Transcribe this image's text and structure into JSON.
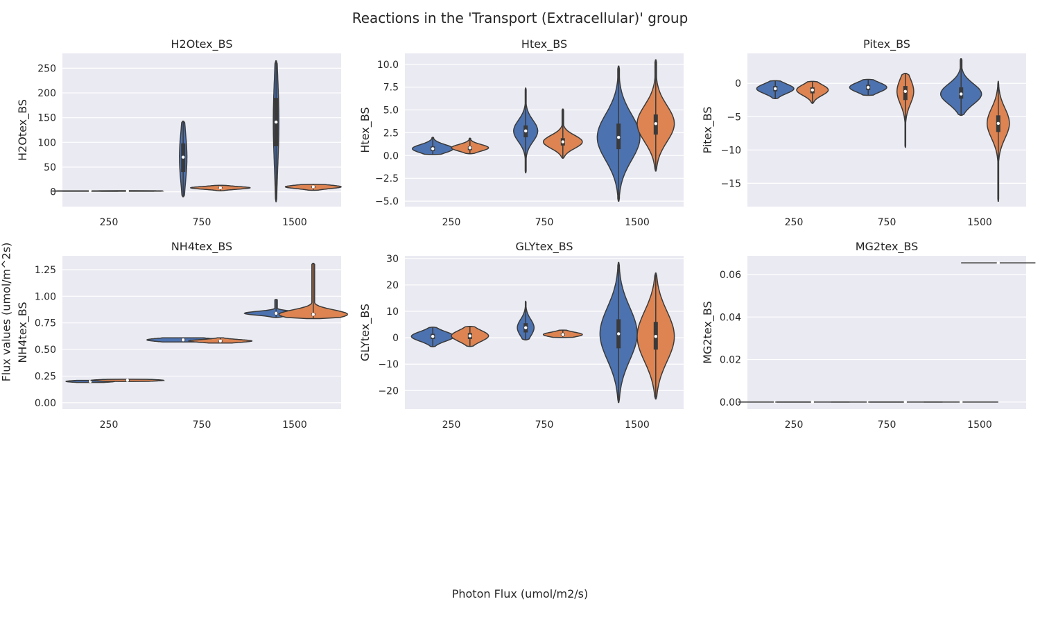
{
  "figure": {
    "title": "Reactions in the 'Transport (Extracellular)' group",
    "xlabel": "Photon Flux (umol/m2/s)",
    "ylabel": "Flux values (umol/m^2s)"
  },
  "colors": {
    "series_a": "#4c72b0",
    "series_b": "#dd8452",
    "background": "#eaeaf2",
    "grid": "#ffffff",
    "line": "#3a3a3a"
  },
  "chart_data": [
    {
      "type": "violin",
      "title": "H2Otex_BS",
      "ylabel": "H2Otex_BS",
      "categories": [
        "250",
        "750",
        "1500"
      ],
      "ylim": [
        -30,
        280
      ],
      "yticks": [
        0,
        50,
        100,
        150,
        200,
        250
      ],
      "ytick_labels": [
        "0",
        "50",
        "100",
        "150",
        "200",
        "250"
      ],
      "violins": [
        {
          "cat": 0,
          "series": 0,
          "min": 1,
          "max": 2,
          "q1": 1.2,
          "median": 1.5,
          "q3": 1.8,
          "halfwidth": 0.41
        },
        {
          "cat": 0,
          "series": 1,
          "min": 1,
          "max": 2.2,
          "q1": 1.2,
          "median": 1.6,
          "q3": 2.0,
          "halfwidth": 0.38
        },
        {
          "cat": 1,
          "series": 0,
          "min": -10,
          "max": 143,
          "q1": 40,
          "median": 70,
          "q3": 98,
          "halfwidth": 0.04
        },
        {
          "cat": 1,
          "series": 1,
          "min": 2,
          "max": 13,
          "q1": 7,
          "median": 8,
          "q3": 10,
          "halfwidth": 0.32
        },
        {
          "cat": 2,
          "series": 0,
          "min": -20,
          "max": 265,
          "q1": 92,
          "median": 141,
          "q3": 190,
          "halfwidth": 0.03
        },
        {
          "cat": 2,
          "series": 1,
          "min": 3,
          "max": 15,
          "q1": 8,
          "median": 10,
          "q3": 12,
          "halfwidth": 0.3
        }
      ]
    },
    {
      "type": "violin",
      "title": "Htex_BS",
      "ylabel": "Htex_BS",
      "categories": [
        "250",
        "750",
        "1500"
      ],
      "ylim": [
        -5.6,
        11.2
      ],
      "yticks": [
        -5,
        -2.5,
        0,
        2.5,
        5,
        7.5,
        10
      ],
      "ytick_labels": [
        "−5.0",
        "−2.5",
        "0.0",
        "2.5",
        "5.0",
        "7.5",
        "10.0"
      ],
      "violins": [
        {
          "cat": 0,
          "series": 0,
          "min": 0.1,
          "max": 2.0,
          "q1": 0.5,
          "median": 0.75,
          "q3": 1.0,
          "halfwidth": 0.22
        },
        {
          "cat": 0,
          "series": 1,
          "min": 0.2,
          "max": 1.9,
          "q1": 0.6,
          "median": 0.85,
          "q3": 1.0,
          "halfwidth": 0.2
        },
        {
          "cat": 1,
          "series": 0,
          "min": -1.9,
          "max": 7.4,
          "q1": 2.0,
          "median": 2.7,
          "q3": 3.3,
          "halfwidth": 0.13
        },
        {
          "cat": 1,
          "series": 1,
          "min": -0.3,
          "max": 5.1,
          "q1": 1.1,
          "median": 1.5,
          "q3": 1.9,
          "halfwidth": 0.21
        },
        {
          "cat": 2,
          "series": 0,
          "min": -5.0,
          "max": 9.8,
          "q1": 0.7,
          "median": 2.0,
          "q3": 3.5,
          "halfwidth": 0.23
        },
        {
          "cat": 2,
          "series": 1,
          "min": -1.7,
          "max": 10.5,
          "q1": 2.3,
          "median": 3.5,
          "q3": 4.5,
          "halfwidth": 0.2
        }
      ]
    },
    {
      "type": "violin",
      "title": "Pitex_BS",
      "ylabel": "Pitex_BS",
      "categories": [
        "250",
        "750",
        "1500"
      ],
      "ylim": [
        -18.5,
        4.5
      ],
      "yticks": [
        -15,
        -10,
        -5,
        0
      ],
      "ytick_labels": [
        "−15",
        "−10",
        "−5",
        "0"
      ],
      "violins": [
        {
          "cat": 0,
          "series": 0,
          "min": -2.3,
          "max": 0.4,
          "q1": -1.2,
          "median": -0.8,
          "q3": -0.4,
          "halfwidth": 0.2
        },
        {
          "cat": 0,
          "series": 1,
          "min": -3.0,
          "max": 0.3,
          "q1": -1.5,
          "median": -1.0,
          "q3": -0.6,
          "halfwidth": 0.17
        },
        {
          "cat": 1,
          "series": 0,
          "min": -1.8,
          "max": 0.6,
          "q1": -1.0,
          "median": -0.6,
          "q3": -0.2,
          "halfwidth": 0.2
        },
        {
          "cat": 1,
          "series": 1,
          "min": -9.6,
          "max": 1.5,
          "q1": -2.5,
          "median": -1.2,
          "q3": -0.4,
          "halfwidth": 0.09
        },
        {
          "cat": 2,
          "series": 0,
          "min": -4.8,
          "max": 3.7,
          "q1": -2.3,
          "median": -1.6,
          "q3": -0.6,
          "halfwidth": 0.22
        },
        {
          "cat": 2,
          "series": 1,
          "min": -17.7,
          "max": 0.3,
          "q1": -7.3,
          "median": -6.0,
          "q3": -4.8,
          "halfwidth": 0.12
        }
      ]
    },
    {
      "type": "violin",
      "title": "NH4tex_BS",
      "ylabel": "NH4tex_BS",
      "categories": [
        "250",
        "750",
        "1500"
      ],
      "ylim": [
        -0.06,
        1.38
      ],
      "yticks": [
        0,
        0.25,
        0.5,
        0.75,
        1.0,
        1.25
      ],
      "ytick_labels": [
        "0.00",
        "0.25",
        "0.50",
        "0.75",
        "1.00",
        "1.25"
      ],
      "violins": [
        {
          "cat": 0,
          "series": 0,
          "min": 0.19,
          "max": 0.21,
          "q1": 0.195,
          "median": 0.2,
          "q3": 0.205,
          "halfwidth": 0.26
        },
        {
          "cat": 0,
          "series": 1,
          "min": 0.2,
          "max": 0.22,
          "q1": 0.205,
          "median": 0.21,
          "q3": 0.215,
          "halfwidth": 0.39
        },
        {
          "cat": 1,
          "series": 0,
          "min": 0.57,
          "max": 0.61,
          "q1": 0.58,
          "median": 0.59,
          "q3": 0.6,
          "halfwidth": 0.39
        },
        {
          "cat": 1,
          "series": 1,
          "min": 0.56,
          "max": 0.61,
          "q1": 0.57,
          "median": 0.58,
          "q3": 0.585,
          "halfwidth": 0.34
        },
        {
          "cat": 2,
          "series": 0,
          "min": 0.8,
          "max": 0.97,
          "q1": 0.83,
          "median": 0.84,
          "q3": 0.85,
          "halfwidth": 0.34
        },
        {
          "cat": 2,
          "series": 1,
          "min": 0.79,
          "max": 1.31,
          "q1": 0.82,
          "median": 0.83,
          "q3": 0.84,
          "halfwidth": 0.37
        }
      ]
    },
    {
      "type": "violin",
      "title": "GLYtex_BS",
      "ylabel": "GLYtex_BS",
      "categories": [
        "250",
        "750",
        "1500"
      ],
      "ylim": [
        -27,
        31
      ],
      "yticks": [
        -20,
        -10,
        0,
        10,
        20,
        30
      ],
      "ytick_labels": [
        "−20",
        "−10",
        "0",
        "10",
        "20",
        "30"
      ],
      "violins": [
        {
          "cat": 0,
          "series": 0,
          "min": -3.4,
          "max": 4.0,
          "q1": -0.5,
          "median": 0.5,
          "q3": 1.5,
          "halfwidth": 0.23
        },
        {
          "cat": 0,
          "series": 1,
          "min": -3.3,
          "max": 4.3,
          "q1": -0.5,
          "median": 0.7,
          "q3": 1.8,
          "halfwidth": 0.2
        },
        {
          "cat": 1,
          "series": 0,
          "min": -0.8,
          "max": 13.8,
          "q1": 2.0,
          "median": 3.8,
          "q3": 5.5,
          "halfwidth": 0.09
        },
        {
          "cat": 1,
          "series": 1,
          "min": 0.1,
          "max": 2.9,
          "q1": 0.7,
          "median": 1.2,
          "q3": 1.7,
          "halfwidth": 0.21
        },
        {
          "cat": 2,
          "series": 0,
          "min": -24.5,
          "max": 28.5,
          "q1": -4.0,
          "median": 1.5,
          "q3": 7.0,
          "halfwidth": 0.2
        },
        {
          "cat": 2,
          "series": 1,
          "min": -23.2,
          "max": 24.5,
          "q1": -4.5,
          "median": 0.5,
          "q3": 6.0,
          "halfwidth": 0.2
        }
      ]
    },
    {
      "type": "violin",
      "title": "MG2tex_BS",
      "ylabel": "MG2tex_BS",
      "categories": [
        "250",
        "750",
        "1500"
      ],
      "ylim": [
        -0.0033,
        0.0688
      ],
      "yticks": [
        0,
        0.02,
        0.04,
        0.06
      ],
      "ytick_labels": [
        "0.00",
        "0.02",
        "0.04",
        "0.06"
      ],
      "violins": [
        {
          "cat": 0,
          "series": 0,
          "min": 0,
          "max": 0,
          "q1": 0,
          "median": 0,
          "q3": 0,
          "halfwidth": 0.4,
          "flat": true
        },
        {
          "cat": 0,
          "series": 1,
          "min": 0,
          "max": 0,
          "q1": 0,
          "median": 0,
          "q3": 0,
          "halfwidth": 0.4,
          "flat": true
        },
        {
          "cat": 1,
          "series": 0,
          "min": 0,
          "max": 0,
          "q1": 0,
          "median": 0,
          "q3": 0,
          "halfwidth": 0.4,
          "flat": true
        },
        {
          "cat": 1,
          "series": 1,
          "min": 0,
          "max": 0,
          "q1": 0,
          "median": 0,
          "q3": 0,
          "halfwidth": 0.4,
          "flat": true
        },
        {
          "cat": 2,
          "series": 0,
          "min": 0,
          "max": 0,
          "q1": 0,
          "median": 0,
          "q3": 0,
          "halfwidth": 0.4,
          "flat": true
        },
        {
          "cat": 2,
          "series": 1,
          "min": 0.0655,
          "max": 0.0655,
          "q1": 0.0655,
          "median": 0.0655,
          "q3": 0.0655,
          "halfwidth": 0.4,
          "flat": true
        }
      ]
    }
  ]
}
